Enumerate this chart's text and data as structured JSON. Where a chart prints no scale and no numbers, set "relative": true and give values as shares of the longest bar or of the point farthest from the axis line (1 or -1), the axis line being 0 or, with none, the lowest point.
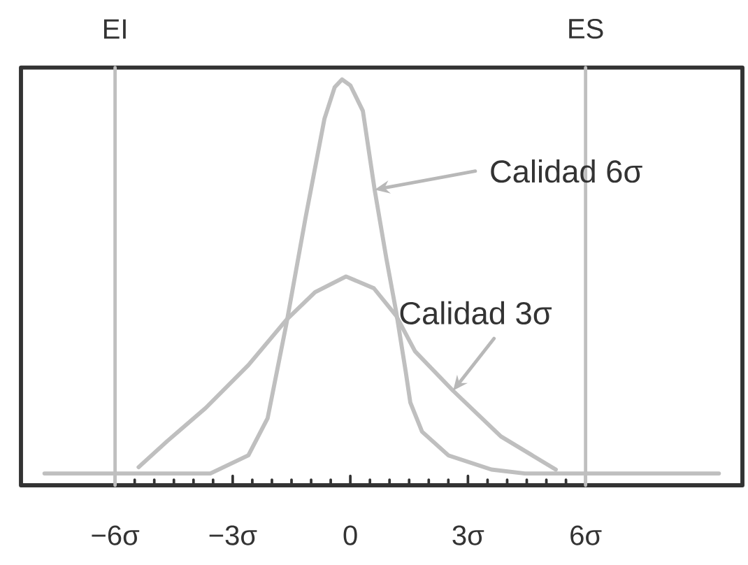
{
  "chart_data": {
    "type": "line",
    "relative": true,
    "xlim": [
      -8.4,
      10
    ],
    "xticks": [
      {
        "value": -6,
        "label": "−6σ"
      },
      {
        "value": -3,
        "label": "−3σ"
      },
      0,
      {
        "value": 3,
        "label": "3σ"
      },
      {
        "value": 6,
        "label": "6σ"
      }
    ],
    "series": [
      {
        "color": "#bfbfbf",
        "x": [
          -7.8,
          -3.57,
          -2.6,
          -2.11,
          -1.87,
          -1.63,
          -1.14,
          -0.66,
          -0.4,
          -0.21,
          0.0,
          0.32,
          0.62,
          0.92,
          1.17,
          1.41,
          1.53,
          1.83,
          2.5,
          3.6,
          4.45,
          9.4
        ],
        "values": [
          0,
          0,
          0.046,
          0.14,
          0.26,
          0.38,
          0.65,
          0.9,
          0.98,
          1,
          0.985,
          0.92,
          0.72,
          0.545,
          0.41,
          0.26,
          0.18,
          0.106,
          0.046,
          0.01,
          0,
          0
        ]
      },
      {
        "color": "#bfbfbf",
        "x": [
          -5.4,
          -4.67,
          -3.69,
          -2.6,
          -1.63,
          -0.9,
          -0.11,
          0.6,
          1.17,
          1.65,
          2.62,
          3.84,
          5.24
        ],
        "values": [
          0.016,
          0.082,
          0.166,
          0.275,
          0.39,
          0.46,
          0.5,
          0.47,
          0.4,
          0.31,
          0.21,
          0.094,
          0.01
        ]
      }
    ],
    "ref_lines": [
      {
        "axis": "x",
        "value": -6,
        "label": "EI",
        "color": "#bfbfbf"
      },
      {
        "axis": "x",
        "value": 6,
        "label": "ES",
        "color": "#bfbfbf"
      }
    ],
    "annotations": [
      {
        "text": "Calidad 6σ",
        "x": 0.62,
        "y": 0.72
      },
      {
        "text": "Calidad 3σ",
        "x": 2.62,
        "y": 0.21
      }
    ]
  }
}
